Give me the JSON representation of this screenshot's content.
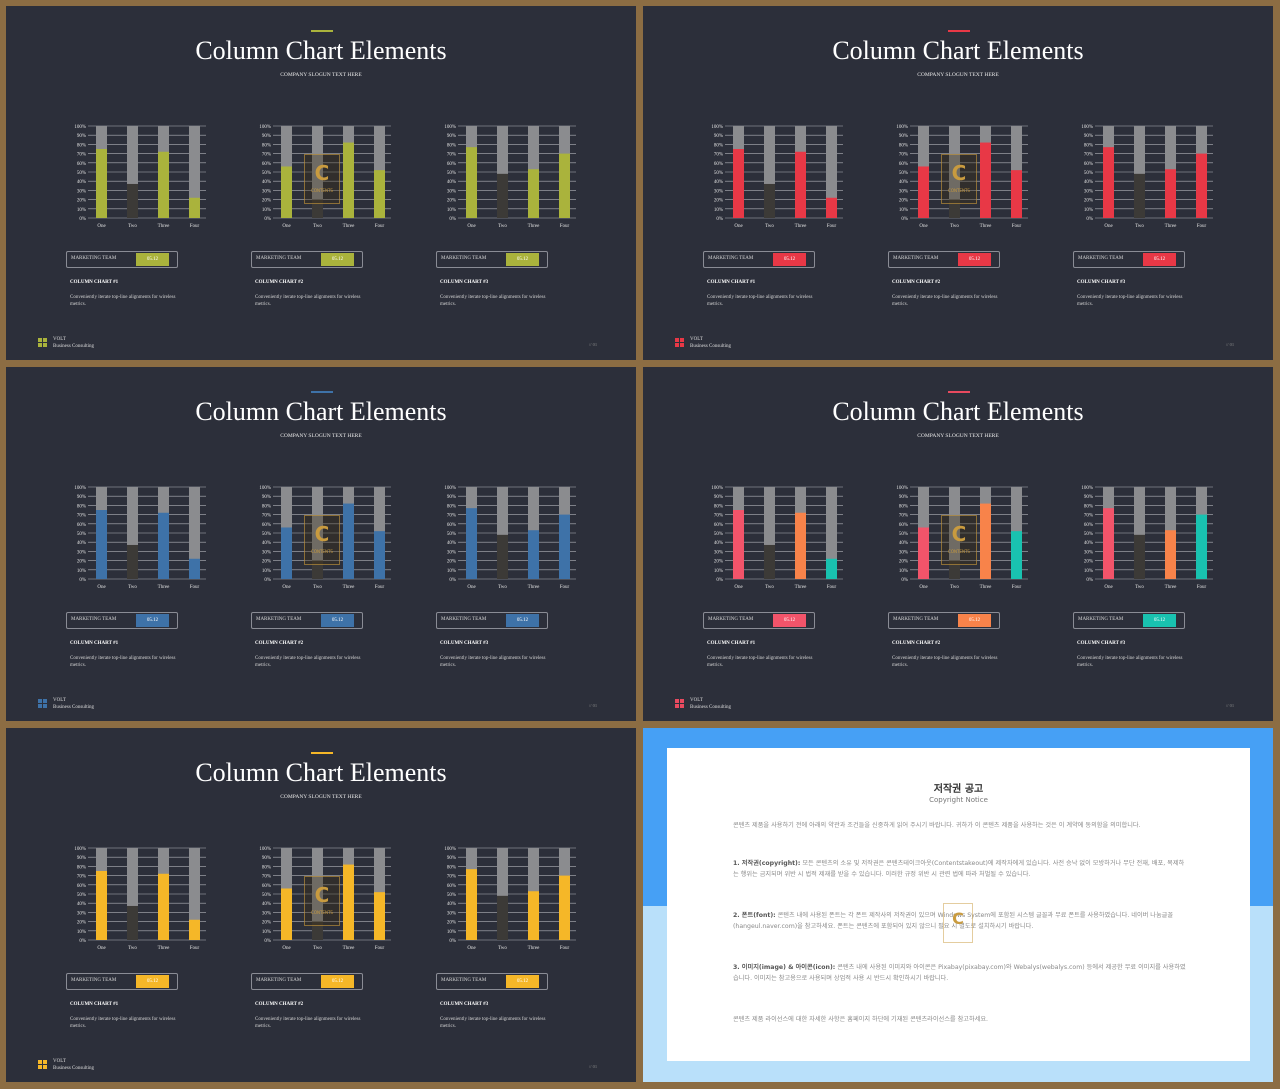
{
  "slides": [
    {
      "accent": "#aab33c",
      "colors": [
        "#aab33c",
        "#aab33c",
        "#aab33c"
      ],
      "logo_colors": [
        "#aab33c",
        "#aab33c",
        "#aab33c",
        "#aab33c"
      ],
      "chart_colors": [
        [
          "#aab33c",
          "#3c3a37",
          "#aab33c",
          "#aab33c"
        ],
        [
          "#aab33c",
          "#3c3a37",
          "#aab33c",
          "#aab33c"
        ],
        [
          "#aab33c",
          "#3c3a37",
          "#aab33c",
          "#aab33c"
        ]
      ]
    },
    {
      "accent": "#e83846",
      "colors": [
        "#e83846",
        "#e83846",
        "#e83846"
      ],
      "logo_colors": [
        "#e83846",
        "#e83846",
        "#e83846",
        "#e83846"
      ],
      "chart_colors": [
        [
          "#e83846",
          "#3c3a37",
          "#e83846",
          "#e83846"
        ],
        [
          "#e83846",
          "#3c3a37",
          "#e83846",
          "#e83846"
        ],
        [
          "#e83846",
          "#3c3a37",
          "#e83846",
          "#e83846"
        ]
      ]
    },
    {
      "accent": "#3e72a8",
      "colors": [
        "#3e72a8",
        "#3e72a8",
        "#3e72a8"
      ],
      "logo_colors": [
        "#3e72a8",
        "#3e72a8",
        "#3e72a8",
        "#3e72a8"
      ],
      "chart_colors": [
        [
          "#3e72a8",
          "#3c3a37",
          "#3e72a8",
          "#3e72a8"
        ],
        [
          "#3e72a8",
          "#3c3a37",
          "#3e72a8",
          "#3e72a8"
        ],
        [
          "#3e72a8",
          "#3c3a37",
          "#3e72a8",
          "#3e72a8"
        ]
      ]
    },
    {
      "accent": "#e84a5f",
      "colors": [
        "#f2546a",
        "#f8834a",
        "#19c2b0"
      ],
      "logo_colors": [
        "#e84a5f",
        "#e84a5f",
        "#e84a5f",
        "#e84a5f"
      ],
      "chart_colors": [
        [
          "#f2546a",
          "#3c3a37",
          "#f8834a",
          "#19c2b0"
        ],
        [
          "#f2546a",
          "#3c3a37",
          "#f8834a",
          "#19c2b0"
        ],
        [
          "#f2546a",
          "#3c3a37",
          "#f8834a",
          "#19c2b0"
        ]
      ]
    },
    {
      "accent": "#f5b728",
      "colors": [
        "#f5b728",
        "#f5b728",
        "#f5b728"
      ],
      "logo_colors": [
        "#f5b728",
        "#f5b728",
        "#f5b728",
        "#f5b728"
      ],
      "chart_colors": [
        [
          "#f5b728",
          "#3c3a37",
          "#f5b728",
          "#f5b728"
        ],
        [
          "#f5b728",
          "#3c3a37",
          "#f5b728",
          "#f5b728"
        ],
        [
          "#f5b728",
          "#3c3a37",
          "#f5b728",
          "#f5b728"
        ]
      ]
    }
  ],
  "slide_text": {
    "title": "Column Chart Elements",
    "slogan": "COMPANY SLOGUN TEXT HERE",
    "team_label": "MARKETING TEAM",
    "team_value": "05.12",
    "chart_titles": [
      "COLUMN CHART #1",
      "COLUMN CHART #2",
      "COLUMN CHART #3"
    ],
    "chart_desc": "Conveniently iterate top-line alignments for wireless metrics.",
    "brand_name": "VOLT",
    "brand_sub": "Business  Consulting",
    "page_num": "// 01",
    "watermark": "C",
    "watermark_sub": "CONTENTS"
  },
  "chart_data": [
    {
      "type": "bar",
      "categories": [
        "One",
        "Two",
        "Three",
        "Four"
      ],
      "values": [
        75,
        37,
        72,
        22
      ],
      "ylim": [
        0,
        100
      ],
      "yticks": [
        "0%",
        "10%",
        "20%",
        "30%",
        "40%",
        "50%",
        "60%",
        "70%",
        "80%",
        "90%",
        "100%"
      ]
    },
    {
      "type": "bar",
      "categories": [
        "One",
        "Two",
        "Three",
        "Four"
      ],
      "values": [
        56,
        20,
        82,
        52
      ],
      "ylim": [
        0,
        100
      ],
      "yticks": [
        "0%",
        "10%",
        "20%",
        "30%",
        "40%",
        "50%",
        "60%",
        "70%",
        "80%",
        "90%",
        "100%"
      ]
    },
    {
      "type": "bar",
      "categories": [
        "One",
        "Two",
        "Three",
        "Four"
      ],
      "values": [
        77,
        48,
        53,
        70
      ],
      "ylim": [
        0,
        100
      ],
      "yticks": [
        "0%",
        "10%",
        "20%",
        "30%",
        "40%",
        "50%",
        "60%",
        "70%",
        "80%",
        "90%",
        "100%"
      ]
    }
  ],
  "notice": {
    "title": "저작권 공고",
    "subtitle": "Copyright Notice",
    "intro": "콘텐츠 제품을 사용하기 전에 아래의 약관과 조건들을 신중하게 읽어 주시기 바랍니다. 귀하가 이 콘텐츠 제품을 사용하는 것은 이 계약에 동의함을 의미합니다.",
    "p1_head": "1. 저작권(copyright):",
    "p1": "모든 콘텐츠의 소유 및 저작권은 콘텐츠테이크아웃(Contentstakeout)에 제작자에게 있습니다. 사전 승낙 없이 모방하거나 무단 전재, 배포, 복제하는 행위는 금지되며 위반 시 법적 제재를 받을 수 있습니다. 이러한 규정 위반 시 관련 법에 따라 처벌될 수 있습니다.",
    "p2_head": "2. 폰트(font):",
    "p2": "콘텐츠 내에 사용된 폰트는 각 폰트 제작사의 저작권이 있으며 Windows System에 포함된 시스템 글꼴과 무료 폰트를 사용하였습니다. 네이버 나눔글꼴(hangeul.naver.com)을 참고하세요. 폰트는 콘텐츠에 포함되어 있지 않으니 필요 시 별도로 설치하시기 바랍니다.",
    "p3_head": "3. 이미지(image) & 아이콘(icon):",
    "p3": "콘텐츠 내에 사용된 이미지와 아이콘은 Pixabay(pixabay.com)와 Webalys(webalys.com) 등에서 제공한 무료 이미지를 사용하였습니다. 이미지는 참고용으로 사용되며 상업적 사용 시 반드시 확인하시기 바랍니다.",
    "closing": "콘텐츠 제품 라이선스에 대한 자세한 사항은 홈페이지 하단에 기재된 콘텐츠라이선스를 참고하세요."
  }
}
